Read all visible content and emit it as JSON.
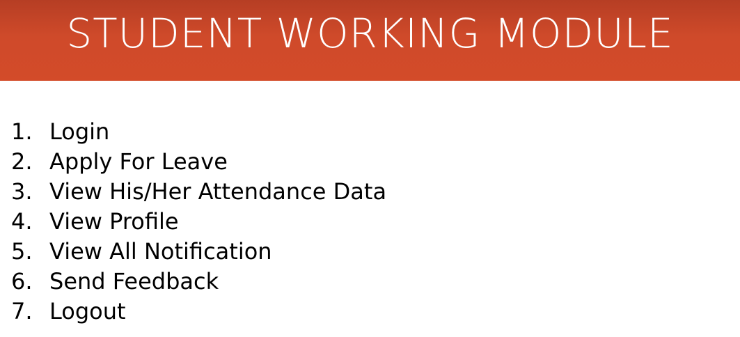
{
  "header": {
    "title": "STUDENT WORKING MODULE",
    "background_color": "#d04a29",
    "text_color": "#ffffff"
  },
  "list": {
    "items": [
      {
        "number": "1.",
        "label": "Login"
      },
      {
        "number": "2.",
        "label": "Apply For Leave"
      },
      {
        "number": "3.",
        "label": "View His/Her Attendance Data"
      },
      {
        "number": "4.",
        "label": "View Profile"
      },
      {
        "number": "5.",
        "label": "View All Notification"
      },
      {
        "number": "6.",
        "label": "Send Feedback"
      },
      {
        "number": "7.",
        "label": "Logout"
      }
    ]
  }
}
